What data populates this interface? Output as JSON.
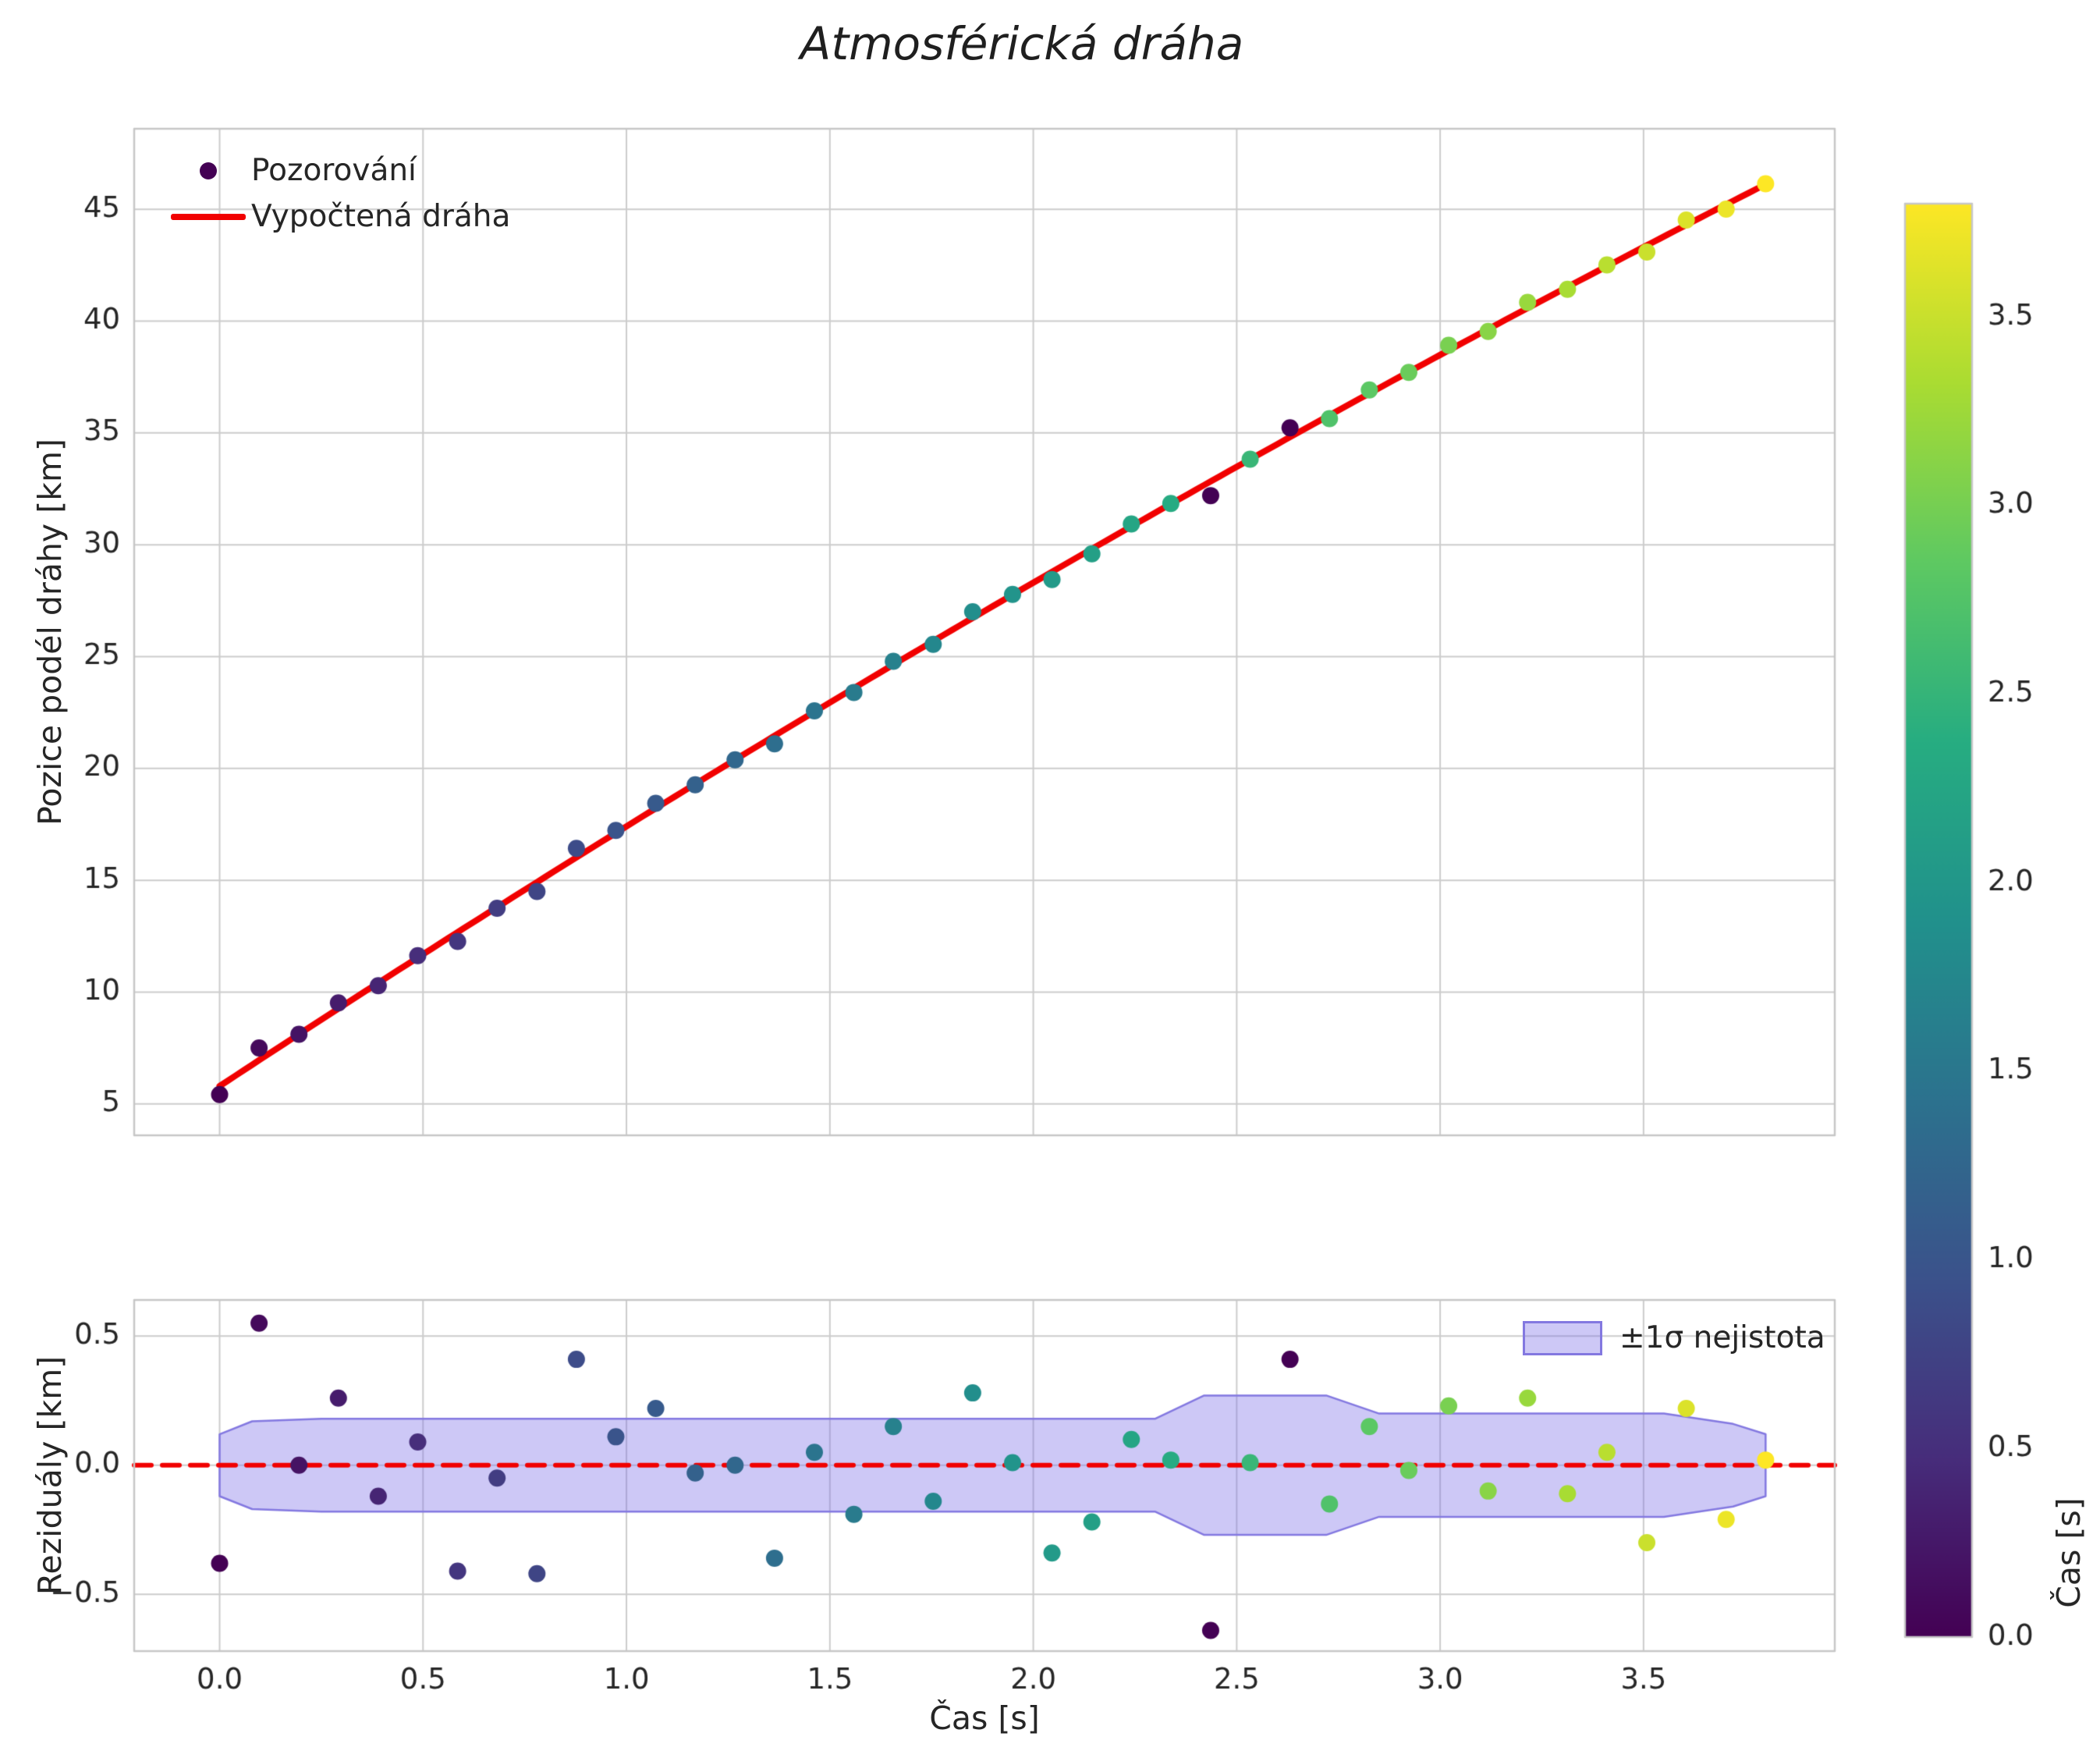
{
  "title": "Atmosférická dráha",
  "legend_top": {
    "observations": "Pozorování",
    "fit": "Vypočtená dráha"
  },
  "legend_bottom": {
    "band": "±1σ nejistota"
  },
  "colors": {
    "fit_line": "#f10000",
    "zero_line": "#f10000",
    "band_fill": "#7b6fe8",
    "band_fill_alpha": 0.38,
    "band_edge": "#8378e0",
    "grid": "#cccccc",
    "frame": "#c6c6c6",
    "text": "#262626",
    "dark_point": "#440154"
  },
  "colorbar": {
    "label": "Čas [s]",
    "range": [
      0.0,
      3.8
    ],
    "ticks": [
      0.0,
      0.5,
      1.0,
      1.5,
      2.0,
      2.5,
      3.0,
      3.5
    ],
    "tick_labels": [
      "0.0",
      "0.5",
      "1.0",
      "1.5",
      "2.0",
      "2.5",
      "3.0",
      "3.5"
    ],
    "colormap": "viridis",
    "colormap_stops": [
      "#440154",
      "#472d7b",
      "#3b528b",
      "#2c728e",
      "#21918c",
      "#27ad81",
      "#5ec962",
      "#aadc32",
      "#fde725"
    ]
  },
  "chart_data": [
    {
      "type": "scatter",
      "name": "trajectory-plot",
      "title": "Atmosférická dráha",
      "xlabel": "Čas [s]",
      "ylabel": "Pozice podél dráhy [km]",
      "xlim": [
        -0.21,
        3.97
      ],
      "ylim": [
        3.6,
        48.6
      ],
      "xticks": [
        0.0,
        0.5,
        1.0,
        1.5,
        2.0,
        2.5,
        3.0,
        3.5
      ],
      "yticks": [
        5,
        10,
        15,
        20,
        25,
        30,
        35,
        40,
        45
      ],
      "ytick_labels": [
        "5",
        "10",
        "15",
        "20",
        "25",
        "30",
        "35",
        "40",
        "45"
      ],
      "grid": true,
      "legend_position": "upper left",
      "color_by": "t",
      "color_range": [
        0.0,
        3.8
      ],
      "points": {
        "t": [
          0.0,
          0.097,
          0.195,
          0.292,
          0.39,
          0.487,
          0.585,
          0.682,
          0.78,
          0.877,
          0.974,
          1.072,
          1.169,
          1.267,
          1.364,
          1.462,
          1.559,
          1.656,
          1.754,
          1.851,
          1.949,
          2.046,
          2.144,
          2.241,
          2.338,
          2.436,
          2.533,
          2.631,
          2.728,
          2.826,
          2.923,
          3.021,
          3.118,
          3.215,
          3.313,
          3.41,
          3.508,
          3.605,
          3.703,
          3.8
        ],
        "pos": [
          5.42,
          7.51,
          8.12,
          9.52,
          10.29,
          11.63,
          12.27,
          13.75,
          14.5,
          16.43,
          17.23,
          18.44,
          19.27,
          20.39,
          21.1,
          22.58,
          23.4,
          24.79,
          25.55,
          27.01,
          27.78,
          28.45,
          29.6,
          30.93,
          31.85,
          32.2,
          33.83,
          35.23,
          35.64,
          36.92,
          37.71,
          38.92,
          39.54,
          40.84,
          41.42,
          42.51,
          43.09,
          44.52,
          45.01,
          46.14
        ],
        "dark_indices": [
          25,
          27
        ]
      },
      "fit": {
        "label": "Vypočtená dráha",
        "model": "pos(t) = 5.8 + 11.97·t − 0.358·t²",
        "coeffs": [
          5.8,
          11.97,
          -0.358
        ],
        "t_range": [
          0.0,
          3.8
        ]
      }
    },
    {
      "type": "scatter",
      "name": "residuals-plot",
      "xlabel": "Čas [s]",
      "ylabel": "Reziduály [km]",
      "xlim": [
        -0.21,
        3.97
      ],
      "ylim": [
        -0.72,
        0.64
      ],
      "xticks": [
        0.0,
        0.5,
        1.0,
        1.5,
        2.0,
        2.5,
        3.0,
        3.5
      ],
      "xtick_labels": [
        "0.0",
        "0.5",
        "1.0",
        "1.5",
        "2.0",
        "2.5",
        "3.0",
        "3.5"
      ],
      "yticks": [
        -0.5,
        0.0,
        0.5
      ],
      "ytick_labels": [
        "−0.5",
        "0.0",
        "0.5"
      ],
      "grid": true,
      "zero_line": 0.0,
      "band": {
        "label": "±1σ nejistota",
        "t": [
          0.0,
          0.08,
          0.25,
          2.3,
          2.42,
          2.72,
          2.85,
          3.55,
          3.72,
          3.8
        ],
        "sigma": [
          0.12,
          0.17,
          0.18,
          0.18,
          0.27,
          0.27,
          0.2,
          0.2,
          0.16,
          0.12
        ]
      },
      "points": {
        "t": [
          0.0,
          0.097,
          0.195,
          0.292,
          0.39,
          0.487,
          0.585,
          0.682,
          0.78,
          0.877,
          0.974,
          1.072,
          1.169,
          1.267,
          1.364,
          1.462,
          1.559,
          1.656,
          1.754,
          1.851,
          1.949,
          2.046,
          2.144,
          2.241,
          2.338,
          2.436,
          2.533,
          2.631,
          2.728,
          2.826,
          2.923,
          3.021,
          3.118,
          3.215,
          3.313,
          3.41,
          3.508,
          3.605,
          3.703,
          3.8
        ],
        "resid": [
          -0.38,
          0.55,
          0.0,
          0.26,
          -0.12,
          0.09,
          -0.41,
          -0.05,
          -0.42,
          0.41,
          0.11,
          0.22,
          -0.03,
          0.0,
          -0.36,
          0.05,
          -0.19,
          0.15,
          -0.14,
          0.28,
          0.01,
          -0.34,
          -0.22,
          0.1,
          0.02,
          -0.64,
          0.01,
          0.41,
          -0.15,
          0.15,
          -0.02,
          0.23,
          -0.1,
          0.26,
          -0.11,
          0.05,
          -0.3,
          0.22,
          -0.21,
          0.02
        ],
        "dark_indices": [
          25,
          27
        ]
      }
    }
  ]
}
